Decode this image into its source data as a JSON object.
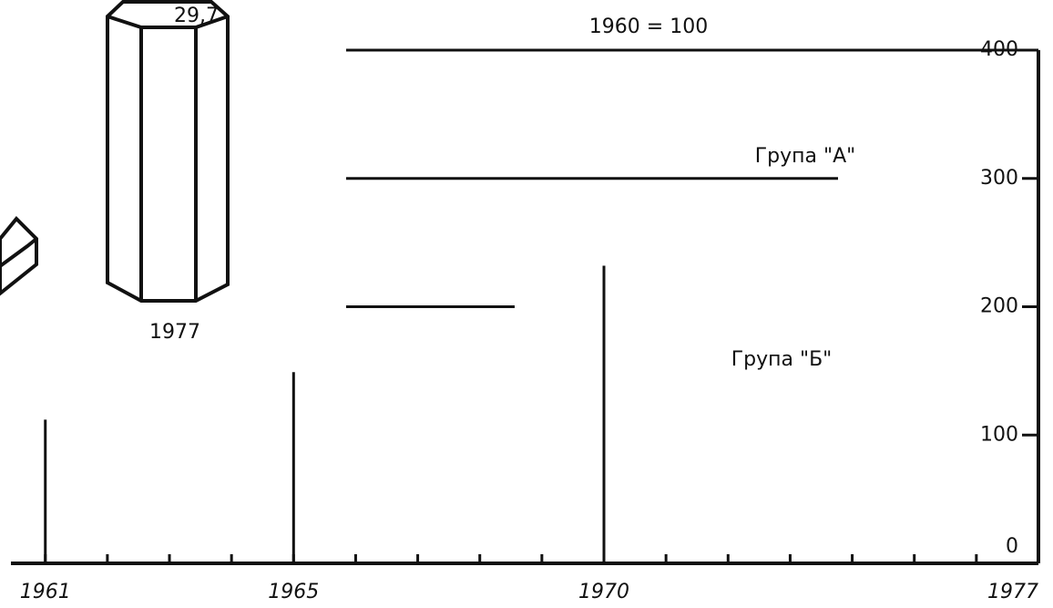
{
  "chart_data": {
    "type": "bar",
    "subtitle": "1960 = 100",
    "annotations": [
      "Група \"А\"",
      "Група \"Б\"",
      "29,7",
      "1977"
    ],
    "x": [
      1961,
      1965,
      1970
    ],
    "values": [
      112,
      149,
      232
    ],
    "color": "#111111",
    "xlim": [
      1960.27,
      1977
    ],
    "xticks": [
      1961,
      1962,
      1963,
      1964,
      1965,
      1966,
      1967,
      1968,
      1969,
      1970,
      1971,
      1972,
      1973,
      1974,
      1975,
      1976,
      1977
    ],
    "xtick_labels": [
      "1961",
      "1965",
      "1970",
      "1977"
    ],
    "ylim": [
      0,
      400
    ],
    "yticks": [
      0,
      100,
      200,
      300,
      400
    ],
    "grid": true
  }
}
